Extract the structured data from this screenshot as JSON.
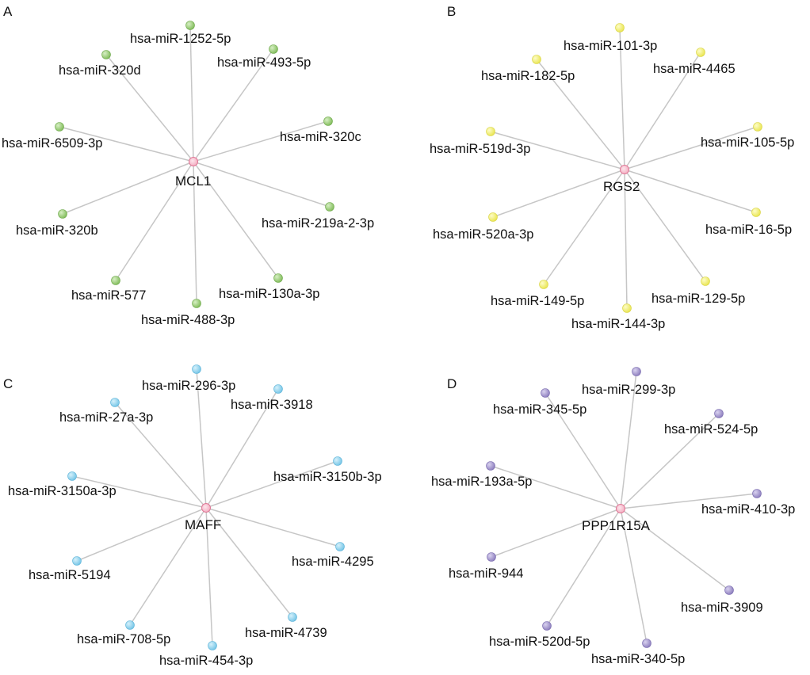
{
  "colors": {
    "edge": "#c6c6c6",
    "hub_fill": "#f4b8c8",
    "hub_stroke": "#e07796",
    "panel_A_node": "#8cc466",
    "panel_B_node": "#f1ee6a",
    "panel_C_node": "#88d0ec",
    "panel_D_node": "#9a8cc8"
  },
  "panels": [
    {
      "label": "A",
      "hub": "MCL1",
      "mirnas": [
        "hsa-miR-1252-5p",
        "hsa-miR-493-5p",
        "hsa-miR-320c",
        "hsa-miR-219a-2-3p",
        "hsa-miR-130a-3p",
        "hsa-miR-488-3p",
        "hsa-miR-577",
        "hsa-miR-320b",
        "hsa-miR-6509-3p",
        "hsa-miR-320d"
      ]
    },
    {
      "label": "B",
      "hub": "RGS2",
      "mirnas": [
        "hsa-miR-101-3p",
        "hsa-miR-4465",
        "hsa-miR-105-5p",
        "hsa-miR-16-5p",
        "hsa-miR-129-5p",
        "hsa-miR-144-3p",
        "hsa-miR-149-5p",
        "hsa-miR-520a-3p",
        "hsa-miR-519d-3p",
        "hsa-miR-182-5p"
      ]
    },
    {
      "label": "C",
      "hub": "MAFF",
      "mirnas": [
        "hsa-miR-296-3p",
        "hsa-miR-3918",
        "hsa-miR-3150b-3p",
        "hsa-miR-4295",
        "hsa-miR-4739",
        "hsa-miR-454-3p",
        "hsa-miR-708-5p",
        "hsa-miR-5194",
        "hsa-miR-3150a-3p",
        "hsa-miR-27a-3p"
      ]
    },
    {
      "label": "D",
      "hub": "PPP1R15A",
      "mirnas": [
        "hsa-miR-299-3p",
        "hsa-miR-524-5p",
        "hsa-miR-410-3p",
        "hsa-miR-3909",
        "hsa-miR-340-5p",
        "hsa-miR-520d-5p",
        "hsa-miR-944",
        "hsa-miR-193a-5p",
        "hsa-miR-345-5p"
      ]
    }
  ]
}
